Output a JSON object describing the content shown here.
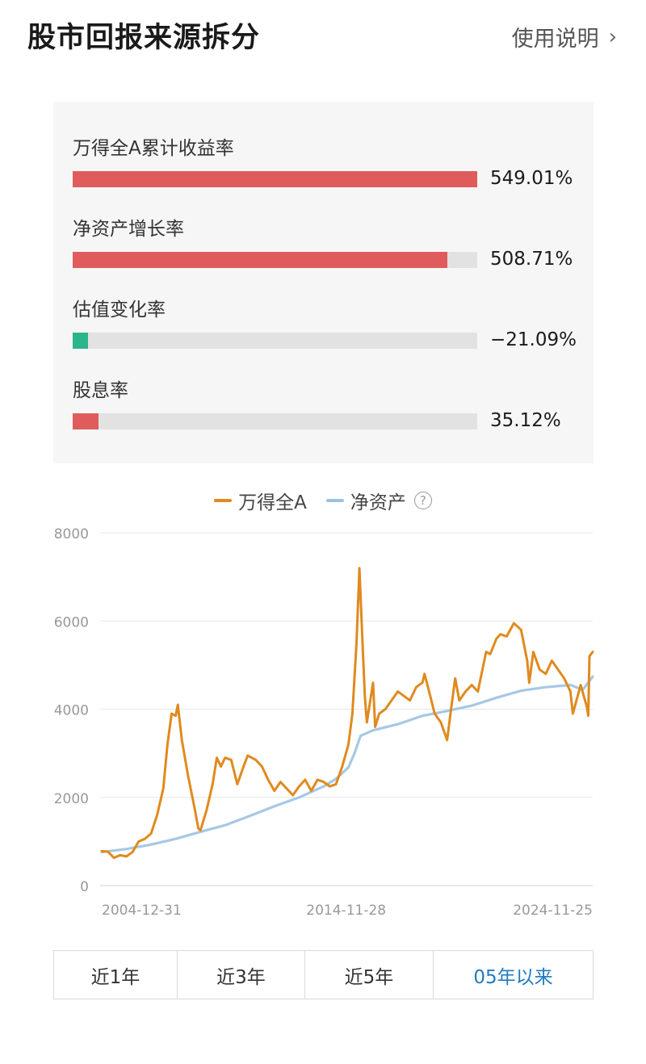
{
  "header": {
    "title": "股市回报来源拆分",
    "help_label": "使用说明"
  },
  "decomposition": [
    {
      "label": "万得全A累计收益率",
      "value_text": "549.01%",
      "value": 549.01,
      "color": "#e05c5c"
    },
    {
      "label": "净资产增长率",
      "value_text": "508.71%",
      "value": 508.71,
      "color": "#e05c5c"
    },
    {
      "label": "估值变化率",
      "value_text": "−21.09%",
      "value": -21.09,
      "color": "#2bb58a"
    },
    {
      "label": "股息率",
      "value_text": "35.12%",
      "value": 35.12,
      "color": "#e05c5c"
    }
  ],
  "legend": [
    {
      "name": "万得全A",
      "color": "#e08a1e"
    },
    {
      "name": "净资产",
      "color": "#9cc2e2"
    }
  ],
  "chart_data": {
    "type": "line",
    "xlabel": "",
    "ylabel": "",
    "ylim": [
      0,
      8000
    ],
    "yticks": [
      0,
      2000,
      4000,
      6000,
      8000
    ],
    "xtick_labels": [
      "2004-12-31",
      "2014-11-28",
      "2024-11-25"
    ],
    "grid": true,
    "legend_position": "top-center",
    "series": [
      {
        "name": "万得全A",
        "color": "#e08a1e",
        "points": [
          [
            "2004-12-31",
            780
          ],
          [
            "2005-03-31",
            770
          ],
          [
            "2005-06-30",
            630
          ],
          [
            "2005-09-30",
            690
          ],
          [
            "2005-12-31",
            660
          ],
          [
            "2006-03-31",
            760
          ],
          [
            "2006-06-30",
            1000
          ],
          [
            "2006-09-30",
            1060
          ],
          [
            "2006-12-31",
            1180
          ],
          [
            "2007-03-31",
            1600
          ],
          [
            "2007-06-30",
            2200
          ],
          [
            "2007-08-31",
            3200
          ],
          [
            "2007-10-31",
            3900
          ],
          [
            "2007-12-31",
            3850
          ],
          [
            "2008-01-31",
            4100
          ],
          [
            "2008-03-31",
            3300
          ],
          [
            "2008-06-30",
            2500
          ],
          [
            "2008-09-30",
            1800
          ],
          [
            "2008-11-30",
            1300
          ],
          [
            "2008-12-31",
            1250
          ],
          [
            "2009-03-31",
            1700
          ],
          [
            "2009-06-30",
            2300
          ],
          [
            "2009-08-31",
            2900
          ],
          [
            "2009-10-31",
            2700
          ],
          [
            "2009-12-31",
            2900
          ],
          [
            "2010-03-31",
            2850
          ],
          [
            "2010-06-30",
            2300
          ],
          [
            "2010-09-30",
            2700
          ],
          [
            "2010-11-30",
            2950
          ],
          [
            "2011-03-31",
            2850
          ],
          [
            "2011-06-30",
            2700
          ],
          [
            "2011-09-30",
            2400
          ],
          [
            "2011-12-31",
            2150
          ],
          [
            "2012-03-31",
            2350
          ],
          [
            "2012-06-30",
            2200
          ],
          [
            "2012-09-30",
            2050
          ],
          [
            "2012-12-31",
            2250
          ],
          [
            "2013-03-31",
            2400
          ],
          [
            "2013-06-30",
            2150
          ],
          [
            "2013-09-30",
            2400
          ],
          [
            "2013-12-31",
            2350
          ],
          [
            "2014-03-31",
            2250
          ],
          [
            "2014-06-30",
            2300
          ],
          [
            "2014-09-30",
            2700
          ],
          [
            "2014-12-31",
            3200
          ],
          [
            "2015-02-28",
            3900
          ],
          [
            "2015-04-30",
            5500
          ],
          [
            "2015-06-12",
            7200
          ],
          [
            "2015-07-31",
            5400
          ],
          [
            "2015-08-31",
            4300
          ],
          [
            "2015-09-30",
            3700
          ],
          [
            "2015-12-31",
            4600
          ],
          [
            "2016-01-31",
            3600
          ],
          [
            "2016-03-31",
            3900
          ],
          [
            "2016-06-30",
            4000
          ],
          [
            "2016-09-30",
            4200
          ],
          [
            "2016-12-31",
            4400
          ],
          [
            "2017-03-31",
            4300
          ],
          [
            "2017-06-30",
            4200
          ],
          [
            "2017-09-30",
            4500
          ],
          [
            "2017-12-31",
            4600
          ],
          [
            "2018-01-31",
            4800
          ],
          [
            "2018-03-31",
            4450
          ],
          [
            "2018-06-30",
            3900
          ],
          [
            "2018-09-30",
            3700
          ],
          [
            "2018-12-31",
            3300
          ],
          [
            "2019-02-28",
            4000
          ],
          [
            "2019-04-30",
            4700
          ],
          [
            "2019-06-30",
            4200
          ],
          [
            "2019-09-30",
            4400
          ],
          [
            "2019-12-31",
            4550
          ],
          [
            "2020-03-31",
            4400
          ],
          [
            "2020-07-31",
            5300
          ],
          [
            "2020-09-30",
            5250
          ],
          [
            "2020-12-31",
            5600
          ],
          [
            "2021-02-28",
            5700
          ],
          [
            "2021-05-31",
            5650
          ],
          [
            "2021-09-15",
            5950
          ],
          [
            "2021-12-31",
            5800
          ],
          [
            "2022-03-31",
            5100
          ],
          [
            "2022-04-30",
            4600
          ],
          [
            "2022-06-30",
            5300
          ],
          [
            "2022-09-30",
            4900
          ],
          [
            "2022-12-31",
            4800
          ],
          [
            "2023-03-31",
            5100
          ],
          [
            "2023-06-30",
            4900
          ],
          [
            "2023-09-30",
            4700
          ],
          [
            "2023-12-31",
            4400
          ],
          [
            "2024-02-05",
            3900
          ],
          [
            "2024-05-31",
            4550
          ],
          [
            "2024-08-31",
            4050
          ],
          [
            "2024-09-20",
            3850
          ],
          [
            "2024-10-08",
            5200
          ],
          [
            "2024-11-25",
            5300
          ]
        ]
      },
      {
        "name": "净资产",
        "color": "#9cc2e2",
        "points": [
          [
            "2004-12-31",
            760
          ],
          [
            "2005-12-31",
            830
          ],
          [
            "2006-12-31",
            930
          ],
          [
            "2007-12-31",
            1060
          ],
          [
            "2008-12-31",
            1220
          ],
          [
            "2009-12-31",
            1370
          ],
          [
            "2010-12-31",
            1580
          ],
          [
            "2011-12-31",
            1800
          ],
          [
            "2012-12-31",
            2000
          ],
          [
            "2013-12-31",
            2250
          ],
          [
            "2014-06-30",
            2420
          ],
          [
            "2014-12-31",
            2680
          ],
          [
            "2015-03-31",
            3000
          ],
          [
            "2015-06-30",
            3400
          ],
          [
            "2015-12-31",
            3520
          ],
          [
            "2016-12-31",
            3660
          ],
          [
            "2017-12-31",
            3850
          ],
          [
            "2018-12-31",
            3960
          ],
          [
            "2019-12-31",
            4080
          ],
          [
            "2020-12-31",
            4260
          ],
          [
            "2021-12-31",
            4420
          ],
          [
            "2022-12-31",
            4500
          ],
          [
            "2023-12-31",
            4550
          ],
          [
            "2024-06-30",
            4440
          ],
          [
            "2024-11-25",
            4740
          ]
        ]
      }
    ]
  },
  "range_tabs": [
    {
      "label": "近1年",
      "active": false
    },
    {
      "label": "近3年",
      "active": false
    },
    {
      "label": "近5年",
      "active": false
    },
    {
      "label": "05年以来",
      "active": true
    }
  ]
}
